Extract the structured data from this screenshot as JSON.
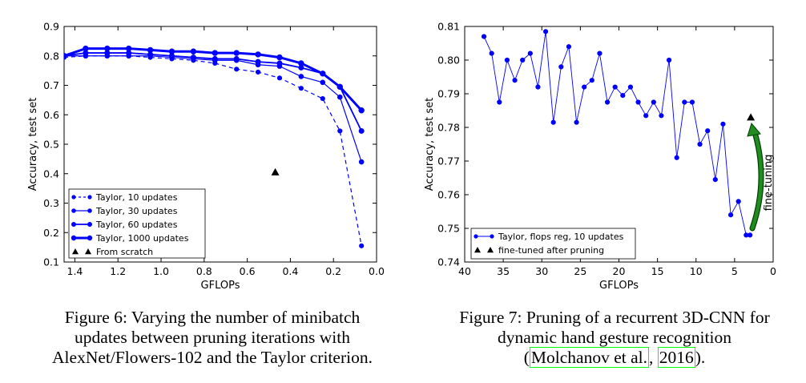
{
  "chart_data": [
    {
      "type": "line",
      "xlabel": "GFLOPs",
      "ylabel": "Accuracy, test set",
      "xlim": [
        1.45,
        0.0
      ],
      "ylim": [
        0.1,
        0.9
      ],
      "x_inverted": true,
      "xticks": [
        "1.4",
        "1.2",
        "1.0",
        "0.8",
        "0.6",
        "0.4",
        "0.2",
        "0.0"
      ],
      "yticks": [
        "0.1",
        "0.2",
        "0.3",
        "0.4",
        "0.5",
        "0.6",
        "0.7",
        "0.8",
        "0.9"
      ],
      "legend_position": "lower-left",
      "grid": false,
      "series": [
        {
          "name": "Taylor, 10 updates",
          "style": "dashed",
          "x": [
            1.45,
            1.35,
            1.25,
            1.15,
            1.05,
            0.95,
            0.85,
            0.75,
            0.65,
            0.55,
            0.45,
            0.35,
            0.25,
            0.17,
            0.07
          ],
          "y": [
            0.795,
            0.8,
            0.8,
            0.8,
            0.795,
            0.79,
            0.785,
            0.775,
            0.755,
            0.745,
            0.725,
            0.69,
            0.655,
            0.545,
            0.155
          ]
        },
        {
          "name": "Taylor, 30 updates",
          "style": "solid-thin",
          "x": [
            1.45,
            1.35,
            1.25,
            1.15,
            1.05,
            0.95,
            0.85,
            0.75,
            0.65,
            0.55,
            0.45,
            0.35,
            0.25,
            0.17,
            0.07
          ],
          "y": [
            0.8,
            0.8,
            0.8,
            0.8,
            0.8,
            0.795,
            0.79,
            0.785,
            0.785,
            0.77,
            0.765,
            0.73,
            0.71,
            0.66,
            0.44
          ]
        },
        {
          "name": "Taylor, 60 updates",
          "style": "solid",
          "x": [
            1.45,
            1.35,
            1.25,
            1.15,
            1.05,
            0.95,
            0.85,
            0.75,
            0.65,
            0.55,
            0.45,
            0.35,
            0.25,
            0.17,
            0.07
          ],
          "y": [
            0.8,
            0.81,
            0.81,
            0.81,
            0.805,
            0.8,
            0.795,
            0.79,
            0.79,
            0.78,
            0.775,
            0.76,
            0.74,
            0.695,
            0.545
          ]
        },
        {
          "name": "Taylor, 1000 updates",
          "style": "solid-thick",
          "x": [
            1.45,
            1.35,
            1.25,
            1.15,
            1.05,
            0.95,
            0.85,
            0.75,
            0.65,
            0.55,
            0.45,
            0.35,
            0.25,
            0.17,
            0.07
          ],
          "y": [
            0.8,
            0.825,
            0.825,
            0.825,
            0.82,
            0.815,
            0.815,
            0.81,
            0.81,
            0.805,
            0.795,
            0.775,
            0.74,
            0.695,
            0.615
          ]
        },
        {
          "name": "From scratch",
          "style": "triangle",
          "x": [
            0.47
          ],
          "y": [
            0.405
          ]
        }
      ]
    },
    {
      "type": "line",
      "xlabel": "GFLOPs",
      "ylabel": "Accuracy, test set",
      "xlim": [
        40,
        0
      ],
      "ylim": [
        0.74,
        0.81
      ],
      "x_inverted": true,
      "xticks": [
        "40",
        "35",
        "30",
        "25",
        "20",
        "15",
        "10",
        "5",
        "0"
      ],
      "yticks": [
        "0.74",
        "0.75",
        "0.76",
        "0.77",
        "0.78",
        "0.79",
        "0.80",
        "0.81"
      ],
      "legend_position": "lower-left",
      "grid": false,
      "annotation": "fine-tuning",
      "series": [
        {
          "name": "Taylor, flops reg, 10 updates",
          "style": "solid",
          "x": [
            37.5,
            36.5,
            35.5,
            34.5,
            33.5,
            32.5,
            31.5,
            30.5,
            29.5,
            28.5,
            27.5,
            26.5,
            25.5,
            24.5,
            23.5,
            22.5,
            21.5,
            20.5,
            19.5,
            18.5,
            17.5,
            16.5,
            15.5,
            14.5,
            13.5,
            12.5,
            11.5,
            10.5,
            9.5,
            8.5,
            7.5,
            6.5,
            5.5,
            4.5,
            3.5,
            3.0
          ],
          "y": [
            0.807,
            0.802,
            0.7875,
            0.8,
            0.794,
            0.8,
            0.802,
            0.792,
            0.8085,
            0.7815,
            0.798,
            0.804,
            0.7815,
            0.792,
            0.794,
            0.802,
            0.7875,
            0.792,
            0.7895,
            0.792,
            0.7875,
            0.7835,
            0.7875,
            0.7835,
            0.8,
            0.771,
            0.7875,
            0.7875,
            0.775,
            0.779,
            0.7645,
            0.781,
            0.754,
            0.758,
            0.748,
            0.748
          ]
        },
        {
          "name": "fine-tuned after pruning",
          "style": "triangle",
          "x": [
            2.9
          ],
          "y": [
            0.783
          ]
        }
      ]
    }
  ],
  "captions": {
    "fig6": {
      "line1": "Figure 6: Varying the number of minibatch",
      "line2": "updates between pruning iterations with",
      "line3": "AlexNet/Flowers-102 and the Taylor criterion."
    },
    "fig7": {
      "line1": "Figure 7: Pruning of a recurrent 3D-CNN for",
      "line2": "dynamic hand gesture recognition",
      "open": "(",
      "author": "Molchanov et al.",
      "sep": ", ",
      "year": "2016",
      "close": ")."
    }
  },
  "colors": {
    "series": "#0000ff",
    "arrow": "#007700",
    "arrow_fill": "#228b22"
  }
}
